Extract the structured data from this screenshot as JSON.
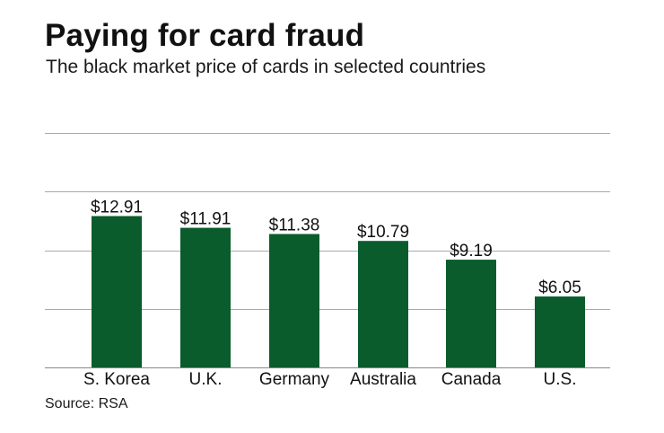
{
  "header": {
    "title": "Paying for card fraud",
    "subtitle": "The black market price of cards in selected countries"
  },
  "footer": {
    "source": "Source: RSA"
  },
  "chart_data": {
    "type": "bar",
    "title": "Paying for card fraud",
    "subtitle": "The black market price of cards in selected countries",
    "categories": [
      "S. Korea",
      "U.K.",
      "Germany",
      "Australia",
      "Canada",
      "U.S."
    ],
    "values": [
      12.91,
      11.91,
      11.38,
      10.79,
      9.19,
      6.05
    ],
    "data_labels": [
      "$12.91",
      "$11.91",
      "$11.38",
      "$10.79",
      "$9.19",
      "$6.05"
    ],
    "ylim": [
      0,
      20
    ],
    "y_gridlines": [
      0,
      5,
      10,
      15,
      20
    ],
    "y_tick_labels_shown": false,
    "grid": true,
    "xlabel": "",
    "ylabel": "",
    "colors": {
      "bar": "#0a5c2c",
      "grid": "#aaaaaa",
      "text": "#111111"
    }
  }
}
